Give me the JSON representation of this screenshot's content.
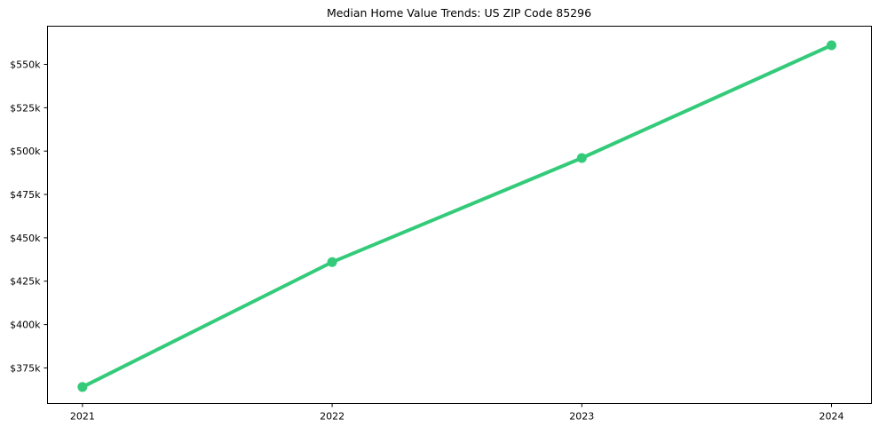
{
  "chart_data": {
    "type": "line",
    "title": "Median Home Value Trends: US ZIP Code 85296",
    "x": [
      2021,
      2022,
      2023,
      2024
    ],
    "x_tick_labels": [
      "2021",
      "2022",
      "2023",
      "2024"
    ],
    "series": [
      {
        "values_usd": [
          364000,
          436000,
          496000,
          561000
        ],
        "color": "#33cb7a",
        "line_width": 4,
        "marker": "circle",
        "marker_radius": 5.5
      }
    ],
    "y_tick_values": [
      375000,
      400000,
      425000,
      450000,
      475000,
      500000,
      525000,
      550000
    ],
    "y_tick_labels": [
      "$375k",
      "$400k",
      "$425k",
      "$450k",
      "$475k",
      "$500k",
      "$525k",
      "$550k"
    ],
    "xlim": [
      2020.86,
      2024.16
    ],
    "ylim": [
      354500,
      572000
    ],
    "xlabel": "",
    "ylabel": "",
    "grid": false,
    "legend": "none",
    "spine_color": "#000000",
    "background_color": "#ffffff"
  }
}
